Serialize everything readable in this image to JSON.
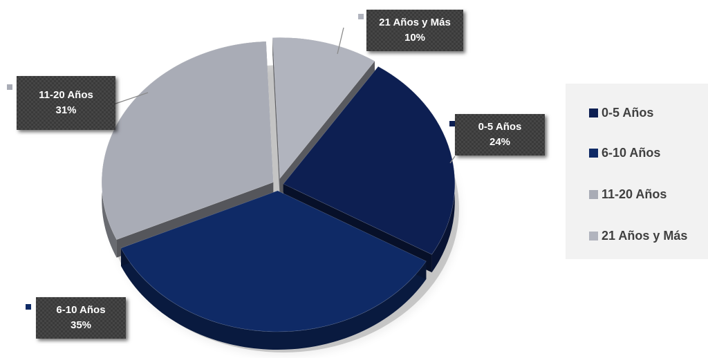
{
  "chart_data": {
    "type": "pie",
    "title": "",
    "slices": [
      {
        "label": "0-5 Años",
        "value": 24,
        "display": "24%",
        "color": "#0d1f52"
      },
      {
        "label": "6-10 Años",
        "value": 35,
        "display": "35%",
        "color": "#0f2a66"
      },
      {
        "label": "11-20 Años",
        "value": 31,
        "display": "31%",
        "color": "#a9acb6"
      },
      {
        "label": "21 Años y Más",
        "value": 10,
        "display": "10%",
        "color": "#b1b4be"
      }
    ],
    "legend": {
      "position": "right",
      "items": [
        "0-5 Años",
        "6-10 Años",
        "11-20 Años",
        "21 Años y Más"
      ]
    },
    "style": "3d-exploded"
  }
}
